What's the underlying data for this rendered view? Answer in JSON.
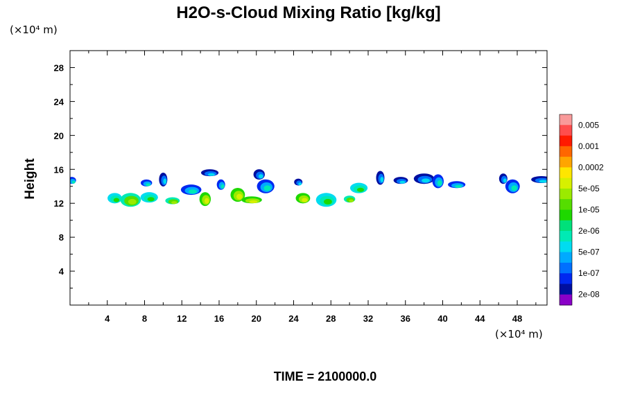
{
  "chart_data": {
    "type": "heatmap",
    "title": "H2O-s-Cloud Mixing Ratio [kg/kg]",
    "xlabel": "",
    "ylabel": "Height",
    "x_unit": "(×10⁴ m)",
    "y_unit": "(×10⁴ m)",
    "xlim": [
      0,
      51.2
    ],
    "ylim": [
      0,
      30
    ],
    "x_ticks": [
      4,
      8,
      12,
      16,
      20,
      24,
      28,
      32,
      36,
      40,
      44,
      48
    ],
    "y_ticks": [
      4,
      8,
      12,
      16,
      20,
      24,
      28
    ],
    "colorbar": {
      "labels": [
        "0.005",
        "0.001",
        "0.0002",
        "5e-05",
        "1e-05",
        "2e-06",
        "5e-07",
        "1e-07",
        "2e-08"
      ],
      "colors": [
        "#f99a9a",
        "#ff4d4d",
        "#ff1a00",
        "#ff6600",
        "#ffa500",
        "#ffe600",
        "#d7f000",
        "#9bea00",
        "#55dd00",
        "#1ed800",
        "#00e07a",
        "#00eab4",
        "#00dcf0",
        "#00aaff",
        "#0070ff",
        "#0028f0",
        "#000fa0",
        "#8a00c8"
      ]
    },
    "cloud_cells": [
      {
        "x": 0.2,
        "y": 14.7,
        "value": "5e-07"
      },
      {
        "x": 4.8,
        "y": 12.6,
        "value": "2e-06"
      },
      {
        "x": 6.5,
        "y": 12.4,
        "value": "1e-05"
      },
      {
        "x": 8.2,
        "y": 14.4,
        "value": "5e-07"
      },
      {
        "x": 8.5,
        "y": 12.7,
        "value": "2e-06"
      },
      {
        "x": 10.0,
        "y": 14.8,
        "value": "1e-07"
      },
      {
        "x": 11.0,
        "y": 12.3,
        "value": "1e-05"
      },
      {
        "x": 13.0,
        "y": 13.6,
        "value": "5e-07"
      },
      {
        "x": 14.5,
        "y": 12.5,
        "value": "5e-05"
      },
      {
        "x": 15.0,
        "y": 15.6,
        "value": "1e-07"
      },
      {
        "x": 16.2,
        "y": 14.2,
        "value": "5e-07"
      },
      {
        "x": 18.0,
        "y": 13.0,
        "value": "5e-05"
      },
      {
        "x": 19.5,
        "y": 12.4,
        "value": "5e-05"
      },
      {
        "x": 20.3,
        "y": 15.4,
        "value": "1e-07"
      },
      {
        "x": 21.0,
        "y": 14.0,
        "value": "5e-07"
      },
      {
        "x": 24.5,
        "y": 14.5,
        "value": "1e-07"
      },
      {
        "x": 25.0,
        "y": 12.6,
        "value": "5e-05"
      },
      {
        "x": 27.5,
        "y": 12.4,
        "value": "2e-06"
      },
      {
        "x": 30.0,
        "y": 12.5,
        "value": "1e-05"
      },
      {
        "x": 31.0,
        "y": 13.8,
        "value": "2e-06"
      },
      {
        "x": 33.3,
        "y": 15.0,
        "value": "1e-07"
      },
      {
        "x": 35.5,
        "y": 14.7,
        "value": "1e-07"
      },
      {
        "x": 38.0,
        "y": 14.9,
        "value": "1e-07"
      },
      {
        "x": 39.5,
        "y": 14.6,
        "value": "5e-07"
      },
      {
        "x": 41.5,
        "y": 14.2,
        "value": "5e-07"
      },
      {
        "x": 46.5,
        "y": 14.9,
        "value": "1e-07"
      },
      {
        "x": 47.5,
        "y": 14.0,
        "value": "5e-07"
      },
      {
        "x": 50.6,
        "y": 14.8,
        "value": "1e-07"
      }
    ]
  },
  "footer": {
    "time_label": "TIME = 2100000.0"
  }
}
